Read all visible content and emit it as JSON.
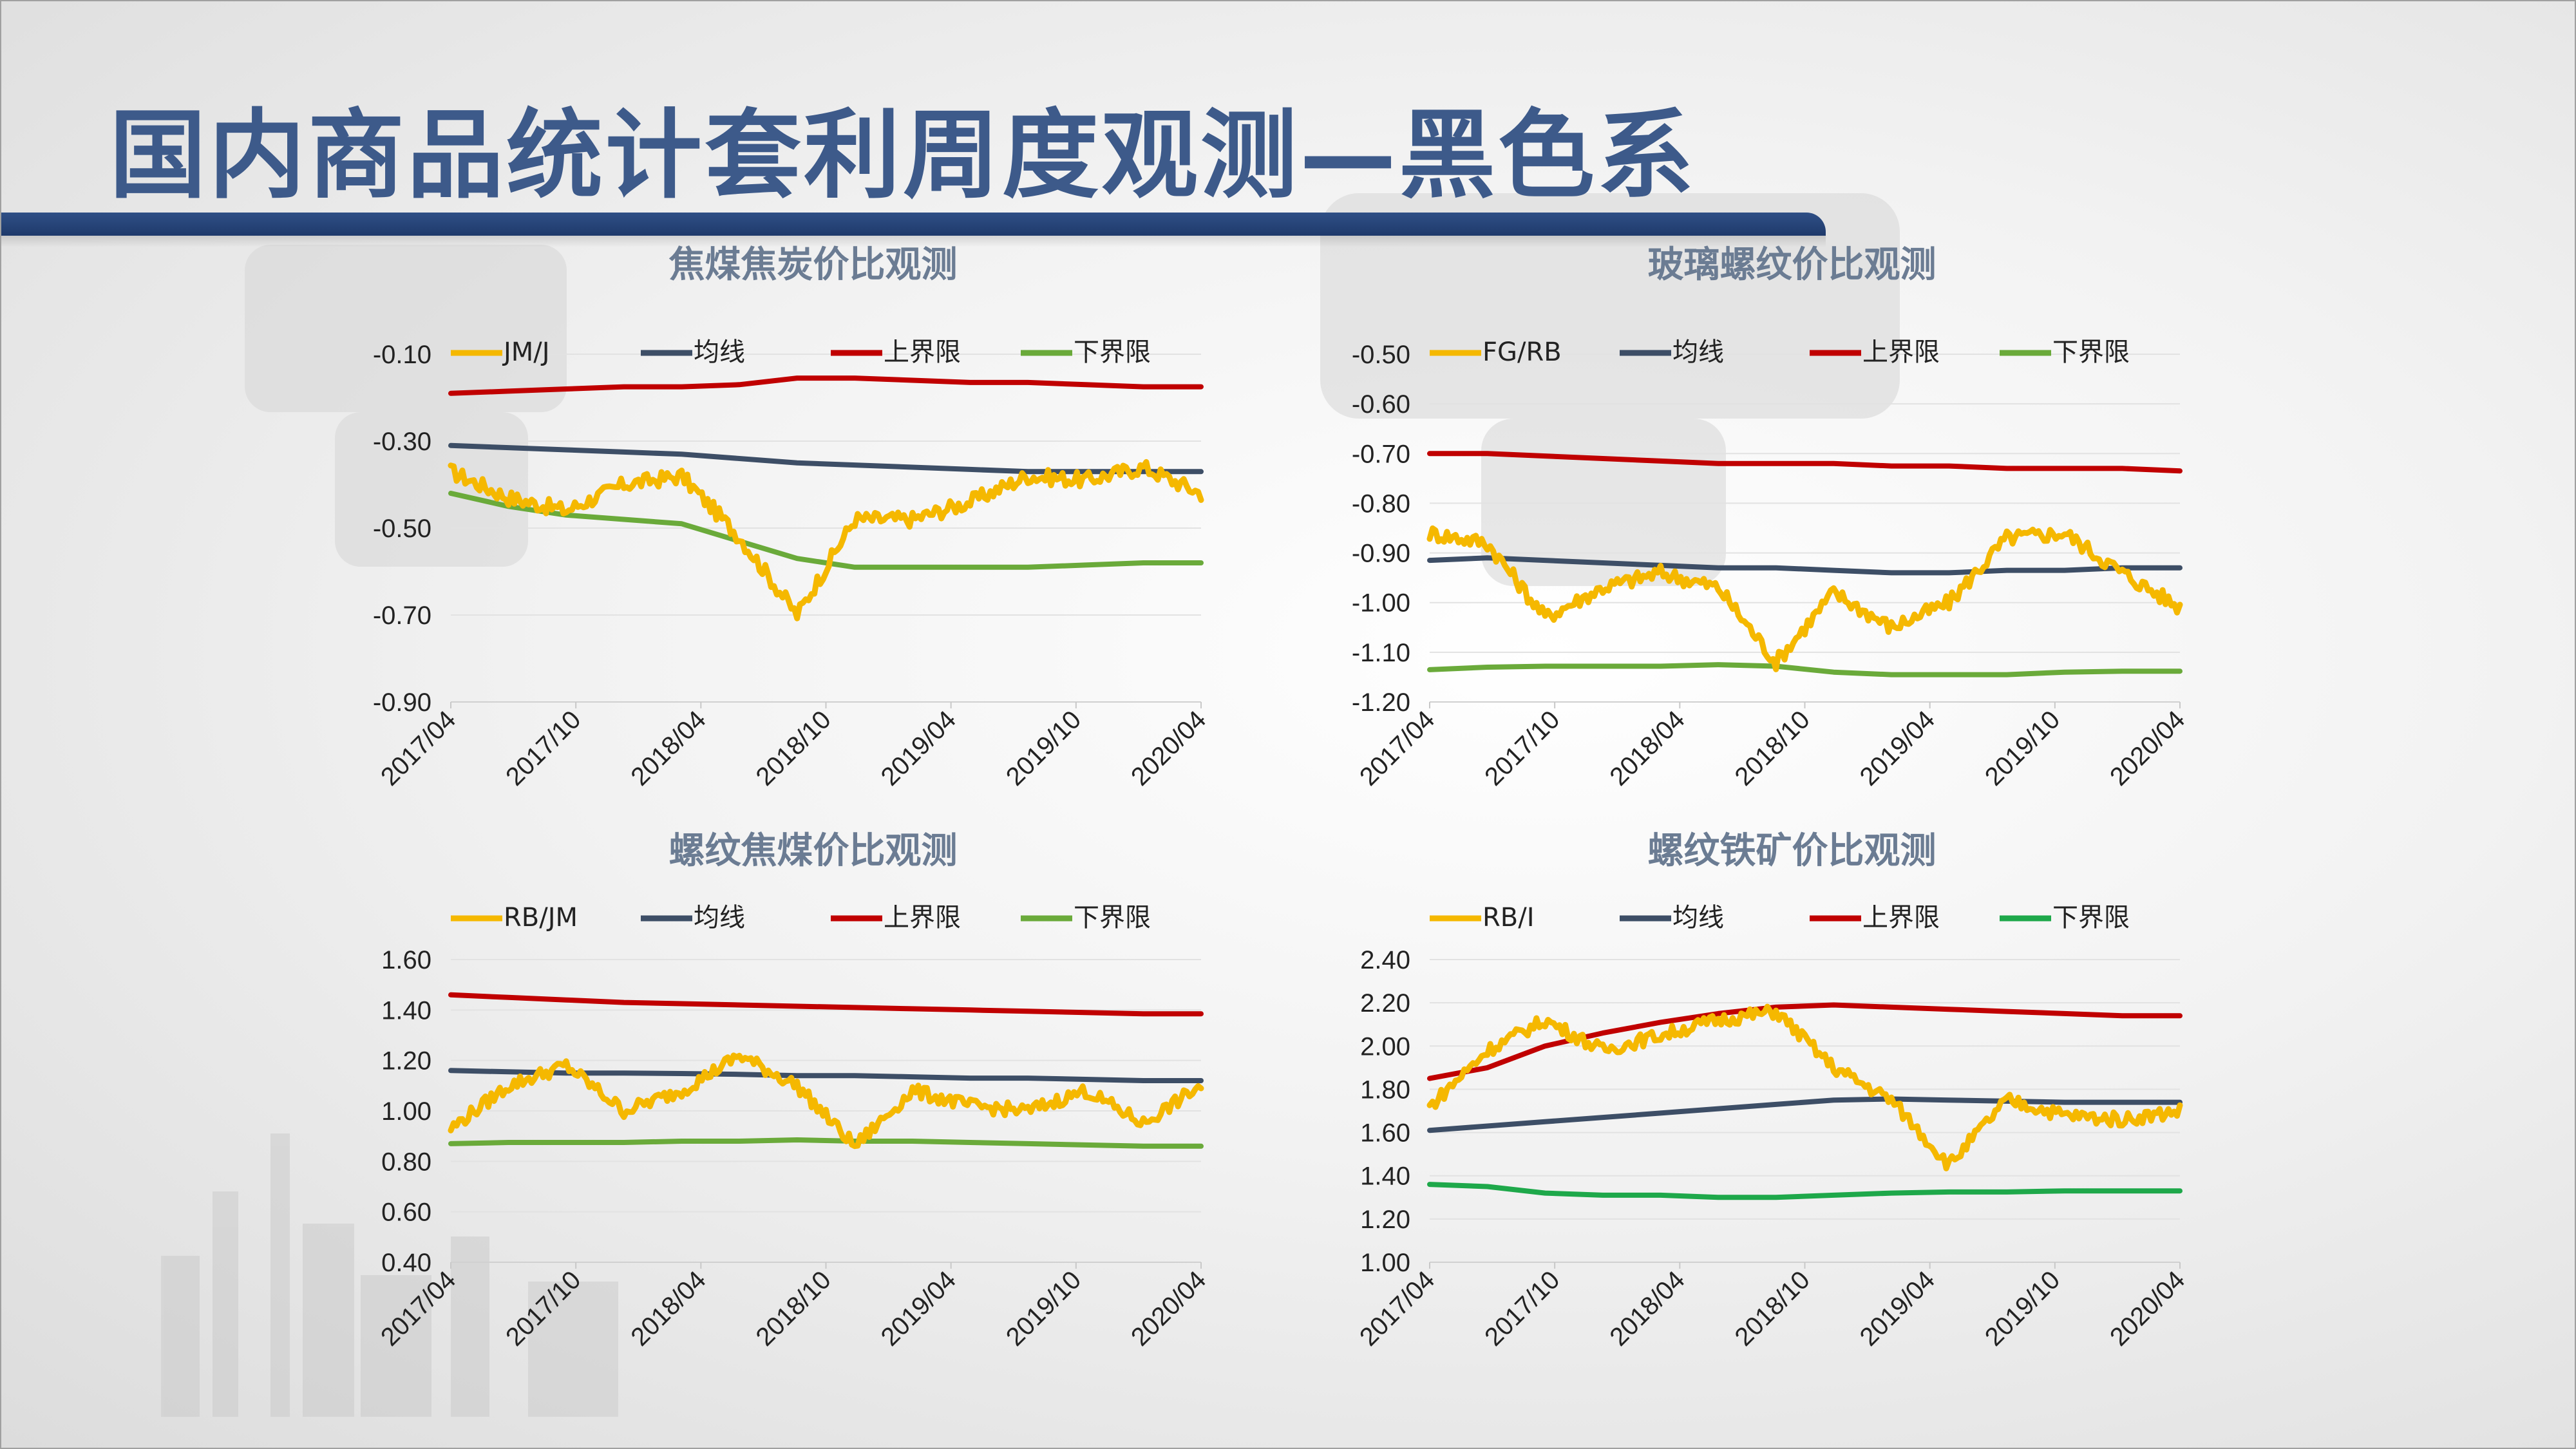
{
  "page": {
    "title": "国内商品统计套利周度观测—黑色系"
  },
  "colors": {
    "series": "#f5b800",
    "mean": "#3d4e66",
    "upper": "#c00000",
    "lower": "#6aaa3a",
    "lower_alt": "#1ea84a"
  },
  "chart_data": [
    {
      "id": "chart1",
      "type": "line",
      "title": "焦煤焦炭价比观测",
      "ylim": [
        -0.9,
        -0.1
      ],
      "yticks": [
        -0.1,
        -0.3,
        -0.5,
        -0.7,
        -0.9
      ],
      "ytick_labels": [
        "-0.10",
        "-0.30",
        "-0.50",
        "-0.70",
        "-0.90"
      ],
      "xtick_labels": [
        "2017/04",
        "2017/10",
        "2018/04",
        "2018/10",
        "2019/04",
        "2019/10",
        "2020/04"
      ],
      "x": [
        "2017/04",
        "2017/07",
        "2017/10",
        "2018/01",
        "2018/04",
        "2018/07",
        "2018/10",
        "2019/01",
        "2019/04",
        "2019/07",
        "2019/10",
        "2020/01",
        "2020/04",
        "2020/05"
      ],
      "series": [
        {
          "name": "JM/J",
          "color": "#f5b800",
          "values": [
            -0.37,
            -0.43,
            -0.46,
            -0.4,
            -0.38,
            -0.52,
            -0.7,
            -0.48,
            -0.48,
            -0.44,
            -0.38,
            -0.39,
            -0.36,
            -0.42
          ]
        },
        {
          "name": "均线",
          "color": "#3d4e66",
          "values": [
            -0.31,
            -0.315,
            -0.32,
            -0.325,
            -0.33,
            -0.34,
            -0.35,
            -0.355,
            -0.36,
            -0.365,
            -0.37,
            -0.37,
            -0.37,
            -0.37
          ]
        },
        {
          "name": "上界限",
          "color": "#c00000",
          "values": [
            -0.19,
            -0.185,
            -0.18,
            -0.175,
            -0.175,
            -0.17,
            -0.155,
            -0.155,
            -0.16,
            -0.165,
            -0.165,
            -0.17,
            -0.175,
            -0.175
          ]
        },
        {
          "name": "下界限",
          "color": "#6aaa3a",
          "values": [
            -0.42,
            -0.45,
            -0.47,
            -0.48,
            -0.49,
            -0.53,
            -0.57,
            -0.59,
            -0.59,
            -0.59,
            -0.59,
            -0.585,
            -0.58,
            -0.58
          ]
        }
      ]
    },
    {
      "id": "chart2",
      "type": "line",
      "title": "玻璃螺纹价比观测",
      "ylim": [
        -1.2,
        -0.5
      ],
      "yticks": [
        -0.5,
        -0.6,
        -0.7,
        -0.8,
        -0.9,
        -1.0,
        -1.1,
        -1.2
      ],
      "ytick_labels": [
        "-0.50",
        "-0.60",
        "-0.70",
        "-0.80",
        "-0.90",
        "-1.00",
        "-1.10",
        "-1.20"
      ],
      "xtick_labels": [
        "2017/04",
        "2017/10",
        "2018/04",
        "2018/10",
        "2019/04",
        "2019/10",
        "2020/04"
      ],
      "x": [
        "2017/04",
        "2017/07",
        "2017/10",
        "2018/01",
        "2018/04",
        "2018/07",
        "2018/10",
        "2019/01",
        "2019/04",
        "2019/07",
        "2019/10",
        "2020/01",
        "2020/04",
        "2020/05"
      ],
      "series": [
        {
          "name": "FG/RB",
          "color": "#f5b800",
          "values": [
            -0.86,
            -0.88,
            -1.03,
            -0.97,
            -0.94,
            -0.97,
            -1.12,
            -0.98,
            -1.05,
            -1.0,
            -0.87,
            -0.86,
            -0.94,
            -1.01
          ]
        },
        {
          "name": "均线",
          "color": "#3d4e66",
          "values": [
            -0.915,
            -0.91,
            -0.915,
            -0.92,
            -0.925,
            -0.93,
            -0.93,
            -0.935,
            -0.94,
            -0.94,
            -0.935,
            -0.935,
            -0.93,
            -0.93
          ]
        },
        {
          "name": "上界限",
          "color": "#c00000",
          "values": [
            -0.7,
            -0.7,
            -0.705,
            -0.71,
            -0.715,
            -0.72,
            -0.72,
            -0.72,
            -0.725,
            -0.725,
            -0.73,
            -0.73,
            -0.73,
            -0.735
          ]
        },
        {
          "name": "下界限",
          "color": "#6aaa3a",
          "values": [
            -1.135,
            -1.13,
            -1.128,
            -1.128,
            -1.128,
            -1.125,
            -1.128,
            -1.14,
            -1.145,
            -1.145,
            -1.145,
            -1.14,
            -1.138,
            -1.138
          ]
        }
      ]
    },
    {
      "id": "chart3",
      "type": "line",
      "title": "螺纹焦煤价比观测",
      "ylim": [
        0.4,
        1.6
      ],
      "yticks": [
        1.6,
        1.4,
        1.2,
        1.0,
        0.8,
        0.6,
        0.4
      ],
      "ytick_labels": [
        "1.60",
        "1.40",
        "1.20",
        "1.00",
        "0.80",
        "0.60",
        "0.40"
      ],
      "xtick_labels": [
        "2017/04",
        "2017/10",
        "2018/04",
        "2018/10",
        "2019/04",
        "2019/10",
        "2020/04"
      ],
      "x": [
        "2017/04",
        "2017/07",
        "2017/10",
        "2018/01",
        "2018/04",
        "2018/07",
        "2018/10",
        "2019/01",
        "2019/04",
        "2019/07",
        "2019/10",
        "2020/01",
        "2020/04",
        "2020/05"
      ],
      "series": [
        {
          "name": "RB/JM",
          "color": "#f5b800",
          "values": [
            0.93,
            1.1,
            1.18,
            1.0,
            1.08,
            1.22,
            1.1,
            0.86,
            1.08,
            1.02,
            1.0,
            1.08,
            0.95,
            1.1
          ]
        },
        {
          "name": "均线",
          "color": "#3d4e66",
          "values": [
            1.16,
            1.155,
            1.15,
            1.15,
            1.148,
            1.145,
            1.14,
            1.14,
            1.135,
            1.13,
            1.13,
            1.125,
            1.12,
            1.12
          ]
        },
        {
          "name": "上界限",
          "color": "#c00000",
          "values": [
            1.46,
            1.45,
            1.44,
            1.43,
            1.425,
            1.42,
            1.415,
            1.41,
            1.405,
            1.4,
            1.395,
            1.39,
            1.385,
            1.385
          ]
        },
        {
          "name": "下界限",
          "color": "#6aaa3a",
          "values": [
            0.87,
            0.875,
            0.875,
            0.875,
            0.88,
            0.88,
            0.885,
            0.88,
            0.88,
            0.875,
            0.87,
            0.865,
            0.86,
            0.86
          ]
        }
      ]
    },
    {
      "id": "chart4",
      "type": "line",
      "title": "螺纹铁矿价比观测",
      "ylim": [
        1.0,
        2.4
      ],
      "yticks": [
        2.4,
        2.2,
        2.0,
        1.8,
        1.6,
        1.4,
        1.2,
        1.0
      ],
      "ytick_labels": [
        "2.40",
        "2.20",
        "2.00",
        "1.80",
        "1.60",
        "1.40",
        "1.20",
        "1.00"
      ],
      "xtick_labels": [
        "2017/04",
        "2017/10",
        "2018/04",
        "2018/10",
        "2019/04",
        "2019/10",
        "2020/04"
      ],
      "x": [
        "2017/04",
        "2017/07",
        "2017/10",
        "2018/01",
        "2018/04",
        "2018/07",
        "2018/10",
        "2019/01",
        "2019/04",
        "2019/07",
        "2019/10",
        "2020/01",
        "2020/04",
        "2020/05"
      ],
      "series": [
        {
          "name": "RB/I",
          "color": "#f5b800",
          "values": [
            1.72,
            1.98,
            2.12,
            1.98,
            2.05,
            2.12,
            2.16,
            1.9,
            1.75,
            1.45,
            1.75,
            1.68,
            1.66,
            1.7
          ]
        },
        {
          "name": "均线",
          "color": "#3d4e66",
          "values": [
            1.61,
            1.63,
            1.65,
            1.67,
            1.69,
            1.71,
            1.73,
            1.75,
            1.755,
            1.75,
            1.745,
            1.74,
            1.74,
            1.74
          ]
        },
        {
          "name": "上界限",
          "color": "#c00000",
          "values": [
            1.85,
            1.9,
            2.0,
            2.06,
            2.11,
            2.15,
            2.18,
            2.19,
            2.18,
            2.17,
            2.16,
            2.15,
            2.14,
            2.14
          ]
        },
        {
          "name": "下界限",
          "color": "#1ea84a",
          "values": [
            1.36,
            1.35,
            1.32,
            1.31,
            1.31,
            1.3,
            1.3,
            1.31,
            1.32,
            1.325,
            1.325,
            1.33,
            1.33,
            1.33
          ]
        }
      ]
    }
  ]
}
